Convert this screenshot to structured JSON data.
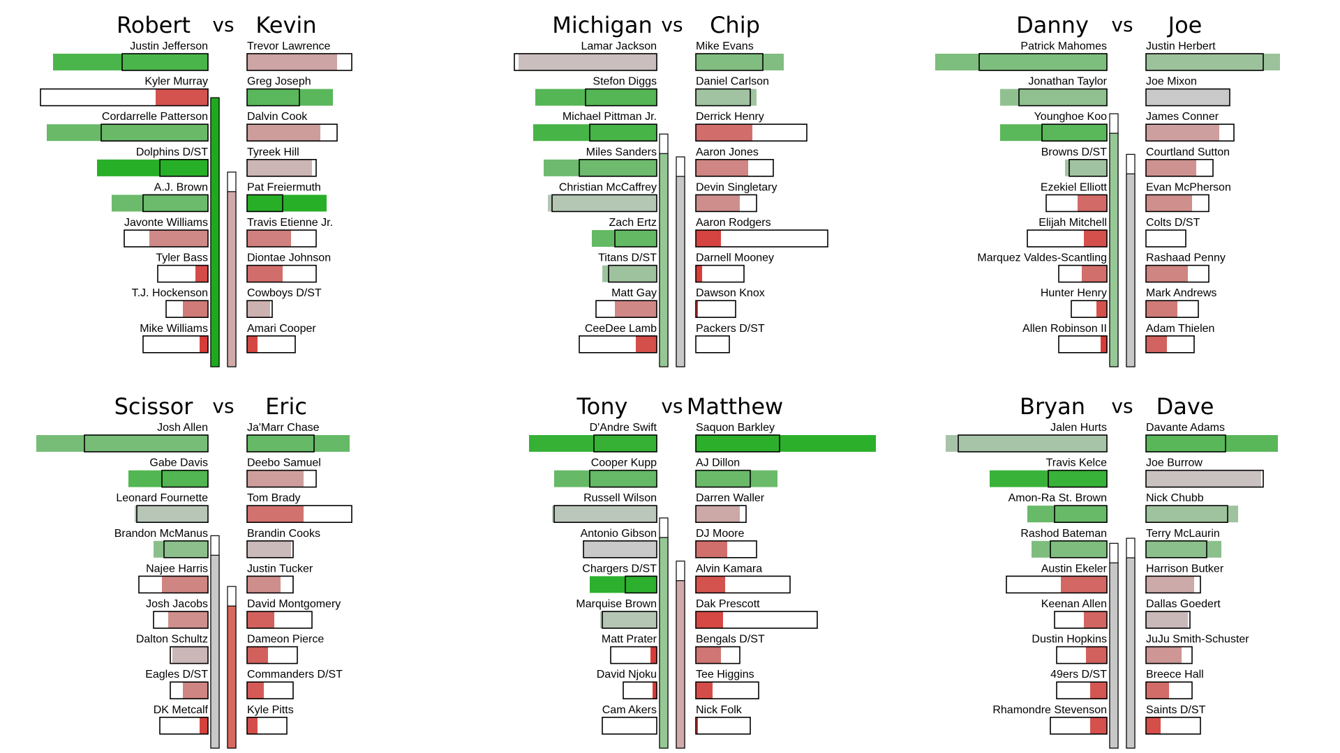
{
  "chart_data": [
    {
      "type": "bar",
      "left": {
        "name": "Robert",
        "total": 1.06,
        "players": [
          {
            "name": "Justin Jefferson",
            "actual": 0.74,
            "projected": 0.41
          },
          {
            "name": "Kyler Murray",
            "actual": 0.25,
            "projected": 0.8
          },
          {
            "name": "Cordarrelle Patterson",
            "actual": 0.77,
            "projected": 0.51
          },
          {
            "name": "Dolphins D/ST",
            "actual": 0.53,
            "projected": 0.23
          },
          {
            "name": "A.J. Brown",
            "actual": 0.46,
            "projected": 0.31
          },
          {
            "name": "Javonte Williams",
            "actual": 0.28,
            "projected": 0.4
          },
          {
            "name": "Tyler Bass",
            "actual": 0.06,
            "projected": 0.24
          },
          {
            "name": "T.J. Hockenson",
            "actual": 0.12,
            "projected": 0.2
          },
          {
            "name": "Mike Williams",
            "actual": 0.04,
            "projected": 0.31
          }
        ]
      },
      "right": {
        "name": "Kevin",
        "total": 0.69,
        "players": [
          {
            "name": "Trevor Lawrence",
            "actual": 0.43,
            "projected": 0.5
          },
          {
            "name": "Greg Joseph",
            "actual": 0.41,
            "projected": 0.25
          },
          {
            "name": "Dalvin Cook",
            "actual": 0.35,
            "projected": 0.43
          },
          {
            "name": "Tyreek Hill",
            "actual": 0.31,
            "projected": 0.33
          },
          {
            "name": "Pat Freiermuth",
            "actual": 0.38,
            "projected": 0.17
          },
          {
            "name": "Travis Etienne Jr.",
            "actual": 0.21,
            "projected": 0.33
          },
          {
            "name": "Diontae Johnson",
            "actual": 0.17,
            "projected": 0.33
          },
          {
            "name": "Cowboys D/ST",
            "actual": 0.11,
            "projected": 0.12
          },
          {
            "name": "Amari Cooper",
            "actual": 0.05,
            "projected": 0.23
          }
        ]
      }
    },
    {
      "type": "bar",
      "left": {
        "name": "Michigan",
        "total": 0.84,
        "players": [
          {
            "name": "Lamar Jackson",
            "actual": 0.66,
            "projected": 0.68
          },
          {
            "name": "Stefon Diggs",
            "actual": 0.58,
            "projected": 0.34
          },
          {
            "name": "Michael Pittman Jr.",
            "actual": 0.59,
            "projected": 0.32
          },
          {
            "name": "Miles Sanders",
            "actual": 0.54,
            "projected": 0.37
          },
          {
            "name": "Christian McCaffrey",
            "actual": 0.52,
            "projected": 0.5
          },
          {
            "name": "Zach Ertz",
            "actual": 0.31,
            "projected": 0.2
          },
          {
            "name": "Titans D/ST",
            "actual": 0.26,
            "projected": 0.23
          },
          {
            "name": "Matt Gay",
            "actual": 0.2,
            "projected": 0.29
          },
          {
            "name": "CeeDee Lamb",
            "actual": 0.1,
            "projected": 0.37
          }
        ]
      },
      "right": {
        "name": "Chip",
        "total": 0.75,
        "players": [
          {
            "name": "Mike Evans",
            "actual": 0.42,
            "projected": 0.32
          },
          {
            "name": "Daniel Carlson",
            "actual": 0.29,
            "projected": 0.26
          },
          {
            "name": "Derrick Henry",
            "actual": 0.27,
            "projected": 0.53
          },
          {
            "name": "Aaron Jones",
            "actual": 0.25,
            "projected": 0.37
          },
          {
            "name": "Devin Singletary",
            "actual": 0.21,
            "projected": 0.29
          },
          {
            "name": "Aaron Rodgers",
            "actual": 0.12,
            "projected": 0.63
          },
          {
            "name": "Darnell Mooney",
            "actual": 0.03,
            "projected": 0.23
          },
          {
            "name": "Dawson Knox",
            "actual": 0.01,
            "projected": 0.19
          },
          {
            "name": "Packers D/ST",
            "actual": 0.0,
            "projected": 0.16
          }
        ]
      }
    },
    {
      "type": "bar",
      "left": {
        "name": "Danny",
        "total": 0.92,
        "players": [
          {
            "name": "Patrick Mahomes",
            "actual": 0.82,
            "projected": 0.61
          },
          {
            "name": "Jonathan Taylor",
            "actual": 0.51,
            "projected": 0.42
          },
          {
            "name": "Younghoe Koo",
            "actual": 0.51,
            "projected": 0.31
          },
          {
            "name": "Browns D/ST",
            "actual": 0.2,
            "projected": 0.18
          },
          {
            "name": "Ezekiel Elliott",
            "actual": 0.14,
            "projected": 0.29
          },
          {
            "name": "Elijah Mitchell",
            "actual": 0.11,
            "projected": 0.38
          },
          {
            "name": "Marquez Valdes-Scantling",
            "actual": 0.12,
            "projected": 0.23
          },
          {
            "name": "Hunter Henry",
            "actual": 0.05,
            "projected": 0.17
          },
          {
            "name": "Allen Robinson II",
            "actual": 0.03,
            "projected": 0.23
          }
        ]
      },
      "right": {
        "name": "Joe",
        "total": 0.76,
        "players": [
          {
            "name": "Justin Herbert",
            "actual": 0.64,
            "projected": 0.56
          },
          {
            "name": "Joe Mixon",
            "actual": 0.4,
            "projected": 0.4
          },
          {
            "name": "James Conner",
            "actual": 0.35,
            "projected": 0.42
          },
          {
            "name": "Courtland Sutton",
            "actual": 0.24,
            "projected": 0.32
          },
          {
            "name": "Evan McPherson",
            "actual": 0.22,
            "projected": 0.3
          },
          {
            "name": "Colts D/ST",
            "actual": 0.0,
            "projected": 0.19
          },
          {
            "name": "Rashaad Penny",
            "actual": 0.2,
            "projected": 0.3
          },
          {
            "name": "Mark Andrews",
            "actual": 0.15,
            "projected": 0.25
          },
          {
            "name": "Adam Thielen",
            "actual": 0.1,
            "projected": 0.23
          }
        ]
      }
    },
    {
      "type": "bar",
      "left": {
        "name": "Scissor",
        "total": 0.76,
        "players": [
          {
            "name": "Josh Allen",
            "actual": 0.82,
            "projected": 0.59
          },
          {
            "name": "Gabe Davis",
            "actual": 0.38,
            "projected": 0.22
          },
          {
            "name": "Leonard Fournette",
            "actual": 0.35,
            "projected": 0.34
          },
          {
            "name": "Brandon McManus",
            "actual": 0.26,
            "projected": 0.21
          },
          {
            "name": "Najee Harris",
            "actual": 0.22,
            "projected": 0.33
          },
          {
            "name": "Josh Jacobs",
            "actual": 0.19,
            "projected": 0.26
          },
          {
            "name": "Dalton Schultz",
            "actual": 0.17,
            "projected": 0.18
          },
          {
            "name": "Eagles D/ST",
            "actual": 0.12,
            "projected": 0.18
          },
          {
            "name": "DK Metcalf",
            "actual": 0.04,
            "projected": 0.23
          }
        ]
      },
      "right": {
        "name": "Eric",
        "total": 0.56,
        "players": [
          {
            "name": "Ja'Marr Chase",
            "actual": 0.49,
            "projected": 0.32
          },
          {
            "name": "Deebo Samuel",
            "actual": 0.27,
            "projected": 0.33
          },
          {
            "name": "Tom Brady",
            "actual": 0.27,
            "projected": 0.5
          },
          {
            "name": "Brandin Cooks",
            "actual": 0.21,
            "projected": 0.22
          },
          {
            "name": "Justin Tucker",
            "actual": 0.16,
            "projected": 0.22
          },
          {
            "name": "David Montgomery",
            "actual": 0.13,
            "projected": 0.31
          },
          {
            "name": "Dameon Pierce",
            "actual": 0.1,
            "projected": 0.24
          },
          {
            "name": "Commanders D/ST",
            "actual": 0.08,
            "projected": 0.22
          },
          {
            "name": "Kyle Pitts",
            "actual": 0.05,
            "projected": 0.19
          }
        ]
      }
    },
    {
      "type": "bar",
      "left": {
        "name": "Tony",
        "total": 0.83,
        "players": [
          {
            "name": "D'Andre Swift",
            "actual": 0.61,
            "projected": 0.3
          },
          {
            "name": "Cooper Kupp",
            "actual": 0.49,
            "projected": 0.32
          },
          {
            "name": "Russell Wilson",
            "actual": 0.5,
            "projected": 0.49
          },
          {
            "name": "Antonio Gibson",
            "actual": 0.35,
            "projected": 0.35
          },
          {
            "name": "Chargers D/ST",
            "actual": 0.32,
            "projected": 0.15
          },
          {
            "name": "Marquise Brown",
            "actual": 0.27,
            "projected": 0.26
          },
          {
            "name": "Matt Prater",
            "actual": 0.03,
            "projected": 0.22
          },
          {
            "name": "David Njoku",
            "actual": 0.02,
            "projected": 0.16
          },
          {
            "name": "Cam Akers",
            "actual": 0.0,
            "projected": 0.26
          }
        ]
      },
      "right": {
        "name": "Matthew",
        "total": 0.66,
        "players": [
          {
            "name": "Saquon Barkley",
            "actual": 0.86,
            "projected": 0.4
          },
          {
            "name": "AJ Dillon",
            "actual": 0.39,
            "projected": 0.26
          },
          {
            "name": "Darren Waller",
            "actual": 0.21,
            "projected": 0.24
          },
          {
            "name": "DJ Moore",
            "actual": 0.15,
            "projected": 0.29
          },
          {
            "name": "Alvin Kamara",
            "actual": 0.14,
            "projected": 0.45
          },
          {
            "name": "Dak Prescott",
            "actual": 0.13,
            "projected": 0.58
          },
          {
            "name": "Bengals D/ST",
            "actual": 0.12,
            "projected": 0.21
          },
          {
            "name": "Tee Higgins",
            "actual": 0.08,
            "projected": 0.3
          },
          {
            "name": "Nick Folk",
            "actual": 0.01,
            "projected": 0.26
          }
        ]
      }
    },
    {
      "type": "bar",
      "left": {
        "name": "Bryan",
        "total": 0.73,
        "players": [
          {
            "name": "Jalen Hurts",
            "actual": 0.77,
            "projected": 0.71
          },
          {
            "name": "Travis Kelce",
            "actual": 0.56,
            "projected": 0.28
          },
          {
            "name": "Amon-Ra St. Brown",
            "actual": 0.38,
            "projected": 0.25
          },
          {
            "name": "Rashod Bateman",
            "actual": 0.36,
            "projected": 0.27
          },
          {
            "name": "Austin Ekeler",
            "actual": 0.22,
            "projected": 0.48
          },
          {
            "name": "Keenan Allen",
            "actual": 0.11,
            "projected": 0.25
          },
          {
            "name": "Dustin Hopkins",
            "actual": 0.1,
            "projected": 0.24
          },
          {
            "name": "49ers D/ST",
            "actual": 0.08,
            "projected": 0.24
          },
          {
            "name": "Rhamondre Stevenson",
            "actual": 0.08,
            "projected": 0.27
          }
        ]
      },
      "right": {
        "name": "Dave",
        "total": 0.75,
        "players": [
          {
            "name": "Davante Adams",
            "actual": 0.63,
            "projected": 0.38
          },
          {
            "name": "Joe Burrow",
            "actual": 0.55,
            "projected": 0.56
          },
          {
            "name": "Nick Chubb",
            "actual": 0.44,
            "projected": 0.39
          },
          {
            "name": "Terry McLaurin",
            "actual": 0.36,
            "projected": 0.29
          },
          {
            "name": "Harrison Butker",
            "actual": 0.23,
            "projected": 0.26
          },
          {
            "name": "Dallas Goedert",
            "actual": 0.2,
            "projected": 0.21
          },
          {
            "name": "JuJu Smith-Schuster",
            "actual": 0.17,
            "projected": 0.22
          },
          {
            "name": "Breece Hall",
            "actual": 0.11,
            "projected": 0.22
          },
          {
            "name": "Saints D/ST",
            "actual": 0.07,
            "projected": 0.26
          }
        ]
      }
    }
  ]
}
